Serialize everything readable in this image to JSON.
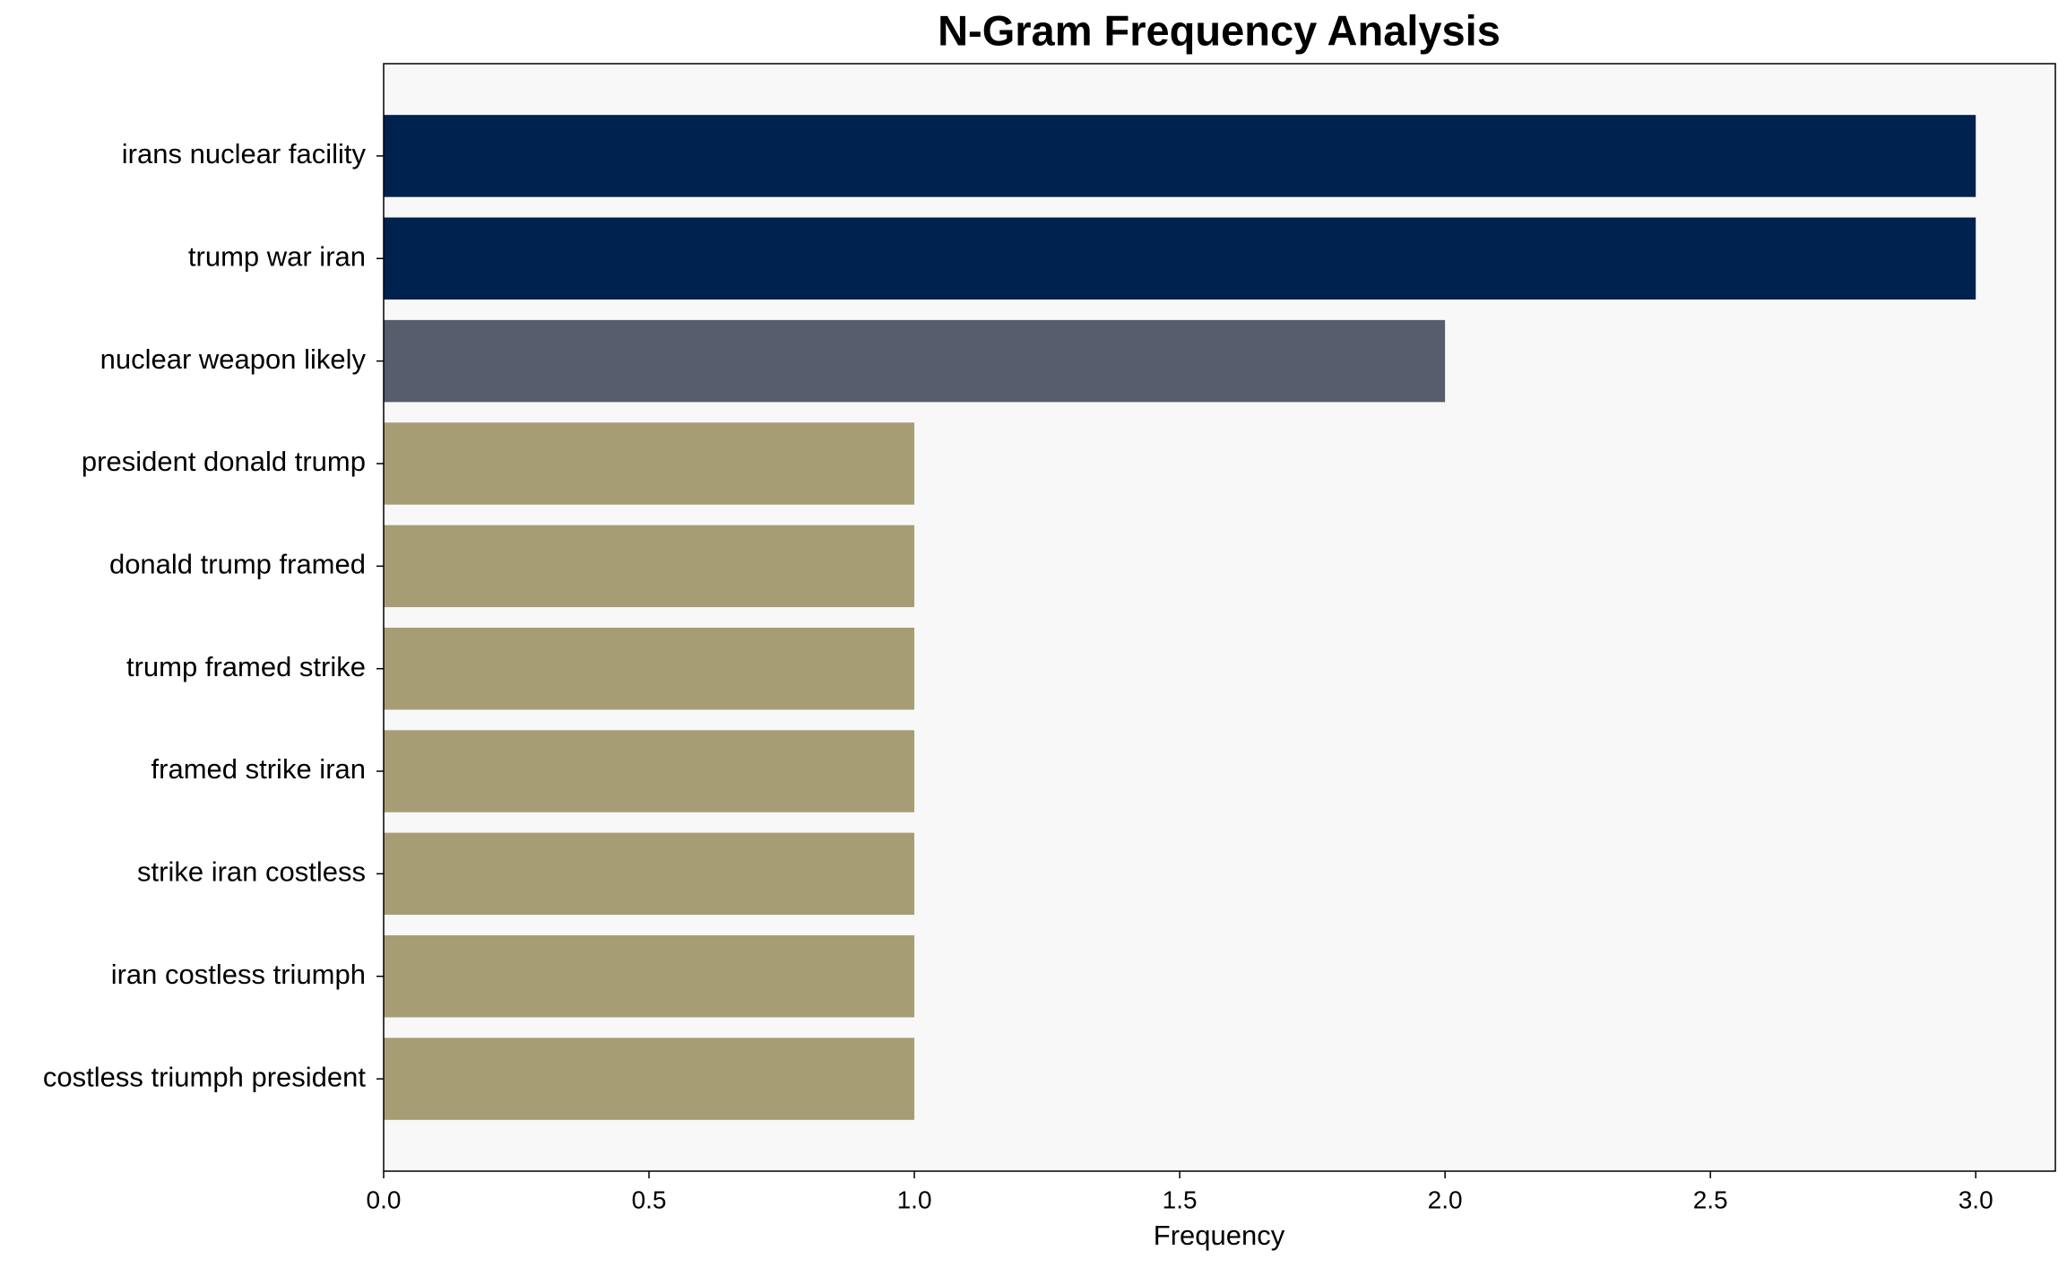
{
  "chart_data": {
    "type": "barh",
    "title": "N-Gram Frequency Analysis",
    "x_label": "Frequency",
    "categories": [
      "irans nuclear facility",
      "trump war iran",
      "nuclear weapon likely",
      "president donald trump",
      "donald trump framed",
      "trump framed strike",
      "framed strike iran",
      "strike iran costless",
      "iran costless triumph",
      "costless triumph president"
    ],
    "values": [
      3,
      3,
      2,
      1,
      1,
      1,
      1,
      1,
      1,
      1
    ],
    "colors": [
      "#00224e",
      "#00224e",
      "#575d6d",
      "#a69d75",
      "#a69d75",
      "#a69d75",
      "#a69d75",
      "#a69d75",
      "#a69d75",
      "#a69d75"
    ],
    "xlim": [
      0,
      3.15
    ],
    "xticks": [
      {
        "value": 0,
        "label": "0.0"
      },
      0.5,
      {
        "value": 1,
        "label": "1.0"
      },
      1.5,
      {
        "value": 2,
        "label": "2.0"
      },
      2.5,
      {
        "value": 3,
        "label": "3.0"
      }
    ],
    "background": "#f8f8f8"
  }
}
